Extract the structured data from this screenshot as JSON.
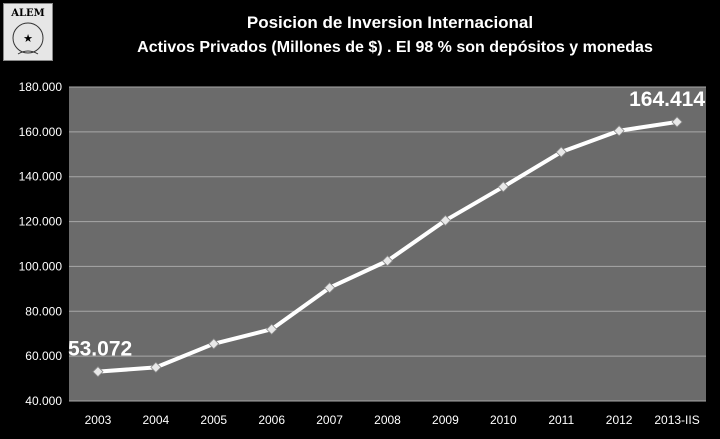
{
  "logo": {
    "text": "ALEM"
  },
  "chart_data": {
    "type": "line",
    "title": "Posicion de Inversion Internacional",
    "subtitle": "Activos Privados  (Millones de $) . El 98 % son depósitos y monedas",
    "categories": [
      "2003",
      "2004",
      "2005",
      "2006",
      "2007",
      "2008",
      "2009",
      "2010",
      "2011",
      "2012",
      "2013-IIS"
    ],
    "values": [
      53072,
      55000,
      65500,
      72000,
      90500,
      102500,
      120500,
      135500,
      151000,
      160500,
      164414
    ],
    "ylim": [
      40000,
      180000
    ],
    "yticks": [
      40000,
      60000,
      80000,
      100000,
      120000,
      140000,
      160000,
      180000
    ],
    "ytick_labels": [
      "40.000",
      "60.000",
      "80.000",
      "100.000",
      "120.000",
      "140.000",
      "160.000",
      "180.000"
    ],
    "data_labels": [
      {
        "index": 0,
        "text": "53.072"
      },
      {
        "index": 10,
        "text": "164.414"
      }
    ],
    "grid": true,
    "colors": {
      "background": "#000000",
      "plot_area": "#6b6b6b",
      "grid": "#a8a8a8",
      "line": "#ffffff"
    }
  }
}
